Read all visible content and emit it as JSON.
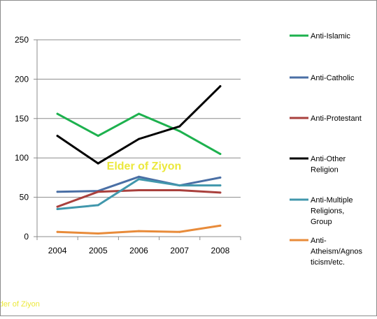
{
  "chart_data": {
    "type": "line",
    "title": "",
    "xlabel": "",
    "ylabel": "",
    "categories": [
      "2004",
      "2005",
      "2006",
      "2007",
      "2008"
    ],
    "ylim": [
      0,
      250
    ],
    "yticks": [
      "0",
      "50",
      "100",
      "150",
      "200",
      "250"
    ],
    "grid": true,
    "legend_position": "right",
    "series": [
      {
        "name": "Anti-Islamic",
        "color": "#1db14e",
        "values": [
          156,
          128,
          156,
          134,
          105
        ]
      },
      {
        "name": "Anti-Catholic",
        "color": "#4a6fa5",
        "values": [
          57,
          58,
          76,
          65,
          75
        ]
      },
      {
        "name": "Anti-Protestant",
        "color": "#a9403d",
        "values": [
          38,
          57,
          59,
          59,
          56
        ]
      },
      {
        "name": "Anti-Other Religion",
        "color": "#000000",
        "values": [
          128,
          93,
          124,
          140,
          191
        ]
      },
      {
        "name": "Anti-Multiple Religions, Group",
        "color": "#4197ac",
        "values": [
          35,
          40,
          73,
          65,
          65
        ]
      },
      {
        "name": "Anti-Atheism/Agnosticism/etc.",
        "color": "#e88b3a",
        "values": [
          6,
          4,
          7,
          6,
          14
        ]
      }
    ]
  },
  "watermark": {
    "center_text": "Elder of Ziyon",
    "corner_text": "Elder of Ziyon"
  }
}
